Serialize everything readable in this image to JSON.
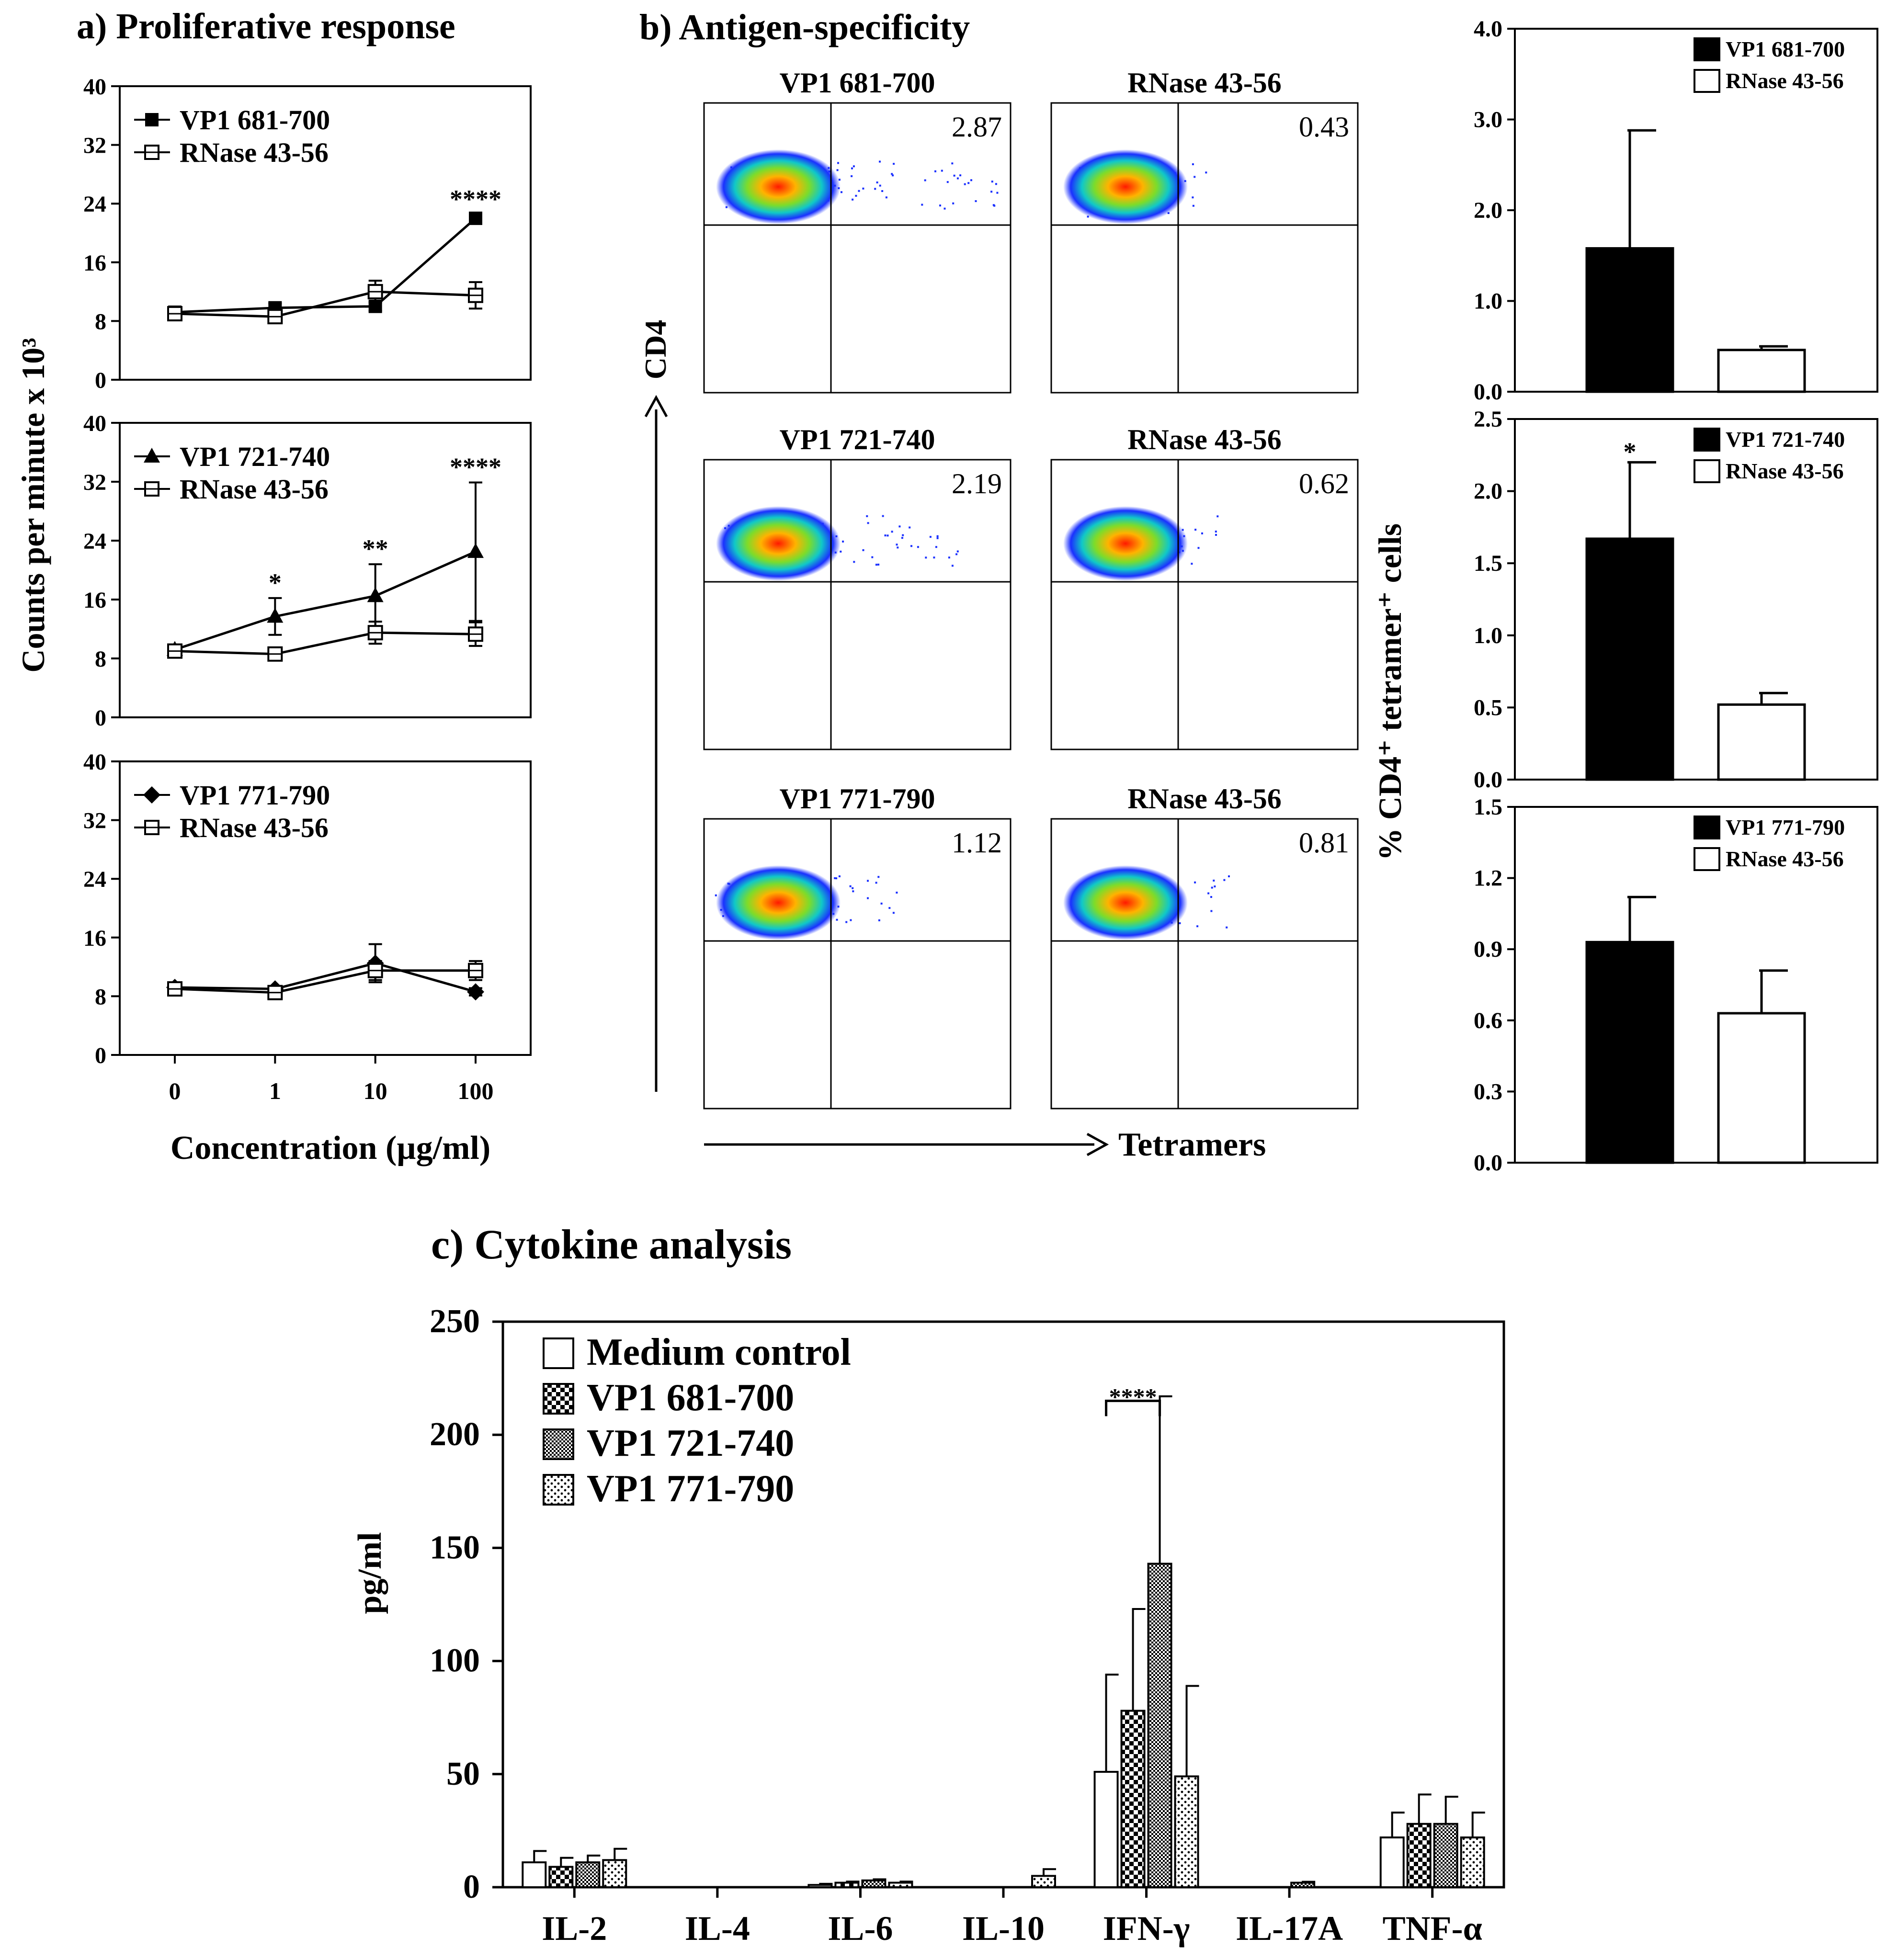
{
  "figure": {
    "panel_a_title": "a) Proliferative response",
    "panel_b_title": "b) Antigen-specificity",
    "panel_c_title": "c) Cytokine analysis"
  },
  "chart_data": [
    {
      "id": "a1",
      "type": "line",
      "panel": "a",
      "x_tick_labels": [
        "0",
        "1",
        "10",
        "100"
      ],
      "xlabel": "Concentration (µg/ml)",
      "ylabel": "Counts per minute x 10³",
      "ylim": [
        0,
        40
      ],
      "yticks": [
        0,
        8,
        16,
        24,
        32,
        40
      ],
      "series": [
        {
          "name": "VP1 681-700",
          "marker": "filled-square",
          "values": [
            9.2,
            9.8,
            10.0,
            22.0
          ],
          "errors": [
            0.4,
            0.6,
            0.6,
            0.5
          ]
        },
        {
          "name": "RNase 43-56",
          "marker": "open-square",
          "values": [
            9.0,
            8.6,
            12.0,
            11.5
          ],
          "errors": [
            0.4,
            0.5,
            1.5,
            1.8
          ]
        }
      ],
      "significance": [
        {
          "x_index": 3,
          "label": "****"
        }
      ]
    },
    {
      "id": "a2",
      "type": "line",
      "panel": "a",
      "x_tick_labels": [
        "0",
        "1",
        "10",
        "100"
      ],
      "ylim": [
        0,
        40
      ],
      "yticks": [
        0,
        8,
        16,
        24,
        32,
        40
      ],
      "series": [
        {
          "name": "VP1 721-740",
          "marker": "filled-triangle",
          "values": [
            9.2,
            13.7,
            16.5,
            22.5
          ],
          "errors": [
            0.4,
            2.5,
            4.3,
            9.4
          ]
        },
        {
          "name": "RNase 43-56",
          "marker": "open-square",
          "values": [
            9.0,
            8.6,
            11.5,
            11.3
          ],
          "errors": [
            0.4,
            0.4,
            1.5,
            1.6
          ]
        }
      ],
      "significance": [
        {
          "x_index": 1,
          "label": "*"
        },
        {
          "x_index": 2,
          "label": "**"
        },
        {
          "x_index": 3,
          "label": "****"
        }
      ]
    },
    {
      "id": "a3",
      "type": "line",
      "panel": "a",
      "x_tick_labels": [
        "0",
        "1",
        "10",
        "100"
      ],
      "ylim": [
        0,
        40
      ],
      "yticks": [
        0,
        8,
        16,
        24,
        32,
        40
      ],
      "series": [
        {
          "name": "VP1 771-790",
          "marker": "filled-diamond",
          "values": [
            9.2,
            9.0,
            12.5,
            8.6
          ],
          "errors": [
            0.5,
            0.4,
            2.6,
            0.5
          ]
        },
        {
          "name": "RNase 43-56",
          "marker": "open-square",
          "values": [
            9.0,
            8.5,
            11.5,
            11.5
          ],
          "errors": [
            0.4,
            0.4,
            1.3,
            1.3
          ]
        }
      ]
    },
    {
      "id": "b-flow",
      "type": "scatter",
      "panel": "b",
      "xlabel": "Tetramers",
      "ylabel": "CD4",
      "plots": [
        {
          "title": "VP1 681-700",
          "percent": "2.87"
        },
        {
          "title": "RNase 43-56",
          "percent": "0.43"
        },
        {
          "title": "VP1 721-740",
          "percent": "2.19"
        },
        {
          "title": "RNase 43-56",
          "percent": "0.62"
        },
        {
          "title": "VP1 771-790",
          "percent": "1.12"
        },
        {
          "title": "RNase 43-56",
          "percent": "0.81"
        }
      ]
    },
    {
      "id": "b1",
      "type": "bar",
      "panel": "b",
      "ylabel": "% CD4⁺ tetramer⁺ cells",
      "ylim": [
        0,
        4
      ],
      "yticks": [
        "0.0",
        "1.0",
        "2.0",
        "3.0",
        "4.0"
      ],
      "series": [
        {
          "name": "VP1 681-700",
          "fill": "#000000",
          "value": 1.58,
          "error": 1.3
        },
        {
          "name": "RNase 43-56",
          "fill": "#ffffff",
          "value": 0.46,
          "error": 0.04
        }
      ]
    },
    {
      "id": "b2",
      "type": "bar",
      "panel": "b",
      "ylim": [
        0,
        2.5
      ],
      "yticks": [
        "0.0",
        "0.5",
        "1.0",
        "1.5",
        "2.0",
        "2.5"
      ],
      "series": [
        {
          "name": "VP1 721-740",
          "fill": "#000000",
          "value": 1.67,
          "error": 0.53
        },
        {
          "name": "RNase 43-56",
          "fill": "#ffffff",
          "value": 0.52,
          "error": 0.08
        }
      ],
      "significance": [
        {
          "bar_index": 0,
          "label": "*"
        }
      ]
    },
    {
      "id": "b3",
      "type": "bar",
      "panel": "b",
      "ylim": [
        0,
        1.5
      ],
      "yticks": [
        "0.0",
        "0.3",
        "0.6",
        "0.9",
        "1.2",
        "1.5"
      ],
      "series": [
        {
          "name": "VP1 771-790",
          "fill": "#000000",
          "value": 0.93,
          "error": 0.19
        },
        {
          "name": "RNase 43-56",
          "fill": "#ffffff",
          "value": 0.63,
          "error": 0.18
        }
      ]
    },
    {
      "id": "c",
      "type": "bar",
      "panel": "c",
      "ylabel": "pg/ml",
      "ylim": [
        0,
        250
      ],
      "yticks": [
        "0",
        "50",
        "100",
        "150",
        "200",
        "250"
      ],
      "categories": [
        "IL-2",
        "IL-4",
        "IL-6",
        "IL-10",
        "IFN-γ",
        "IL-17A",
        "TNF-α"
      ],
      "series": [
        {
          "name": "Medium control",
          "pattern": "open",
          "values": [
            11,
            0,
            1,
            0,
            51,
            0,
            22
          ],
          "errors": [
            5,
            0,
            0.5,
            0,
            43,
            0,
            11
          ]
        },
        {
          "name": "VP1 681-700",
          "pattern": "checker",
          "values": [
            9,
            0,
            2,
            0,
            78,
            0,
            28
          ],
          "errors": [
            4,
            0,
            0.5,
            0,
            45,
            0,
            13
          ]
        },
        {
          "name": "VP1 721-740",
          "pattern": "fine-checker",
          "values": [
            11,
            0,
            3,
            0,
            143,
            2,
            28
          ],
          "errors": [
            3,
            0,
            0.5,
            0,
            74,
            0.4,
            12
          ]
        },
        {
          "name": "VP1 771-790",
          "pattern": "dots",
          "values": [
            12,
            0,
            2,
            5,
            49,
            0,
            22
          ],
          "errors": [
            5,
            0,
            0.5,
            3,
            40,
            0,
            11
          ]
        }
      ],
      "significance": [
        {
          "category": "IFN-γ",
          "label": "****"
        }
      ]
    }
  ]
}
